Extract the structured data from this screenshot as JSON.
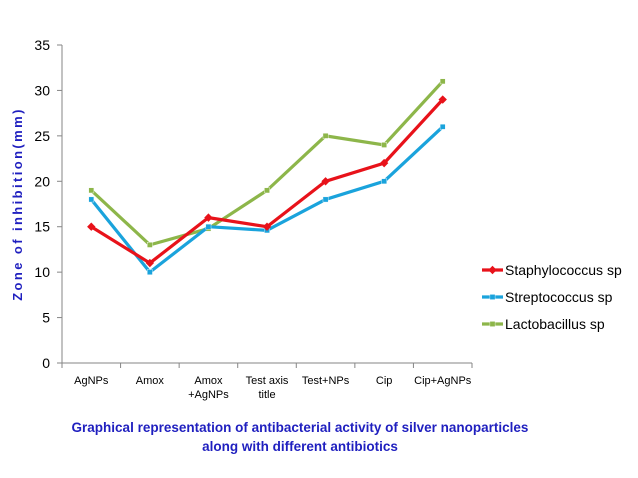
{
  "chart_data": {
    "type": "line",
    "categories": [
      [
        "AgNPs"
      ],
      [
        "Amox"
      ],
      [
        "Amox",
        "+AgNPs"
      ],
      [
        "Test axis",
        "title"
      ],
      [
        "Test+NPs"
      ],
      [
        "Cip"
      ],
      [
        "Cip+AgNPs"
      ]
    ],
    "ylabel": "Zone of inhibition(mm)",
    "xlabel": "",
    "ylim": [
      0,
      35
    ],
    "yticks": [
      0,
      5,
      10,
      15,
      20,
      25,
      30,
      35
    ],
    "grid": false,
    "legend_position": "right",
    "series": [
      {
        "name": "Staphylococcus sp",
        "color": "#e8121a",
        "marker": "diamond",
        "values": [
          15,
          11,
          16,
          15,
          20,
          22,
          29
        ]
      },
      {
        "name": "Streptococcus sp",
        "color": "#1aa3dc",
        "marker": "square",
        "values": [
          18,
          10,
          15,
          14.6,
          18,
          20,
          26
        ]
      },
      {
        "name": "Lactobacillus sp",
        "color": "#8db64a",
        "marker": "square",
        "values": [
          19,
          13,
          14.8,
          19,
          25,
          24,
          31
        ]
      }
    ]
  },
  "caption": {
    "line1": "Graphical representation of antibacterial activity of silver nanoparticles",
    "line2": "along with different antibiotics"
  }
}
